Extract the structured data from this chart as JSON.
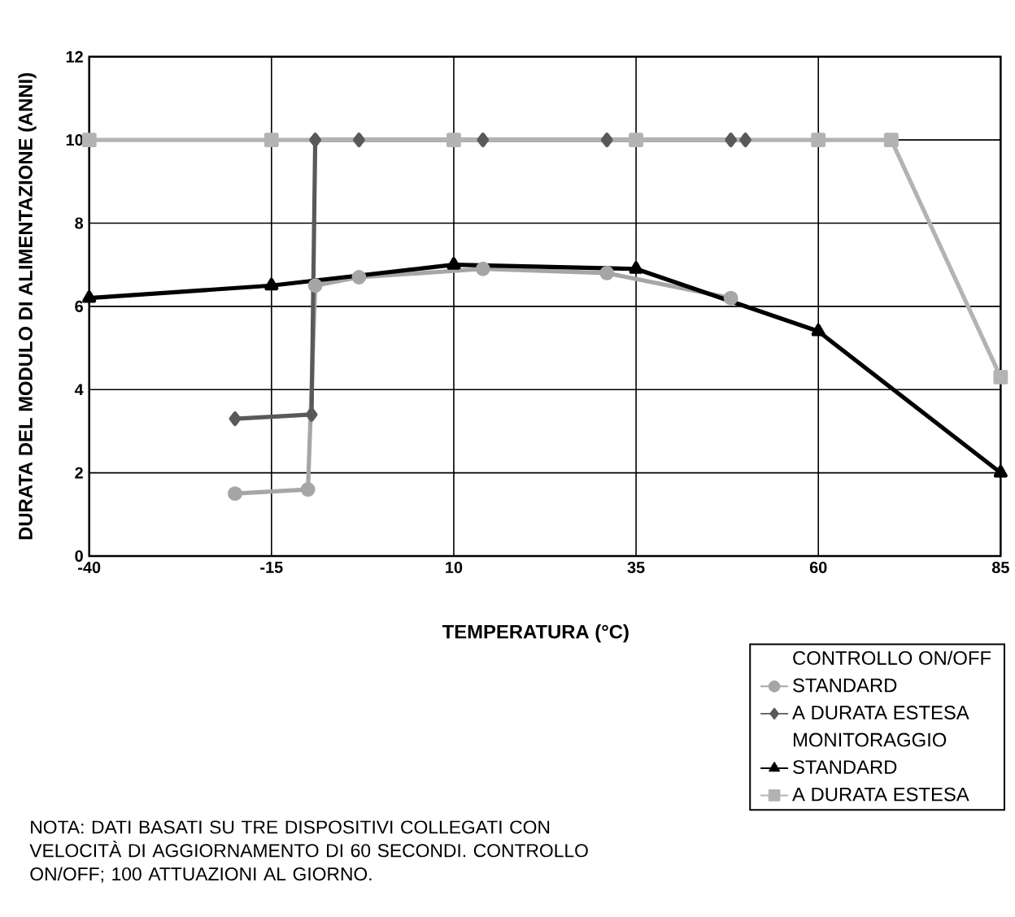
{
  "chart_data": {
    "type": "line",
    "xlabel": "TEMPERATURA (°C)",
    "ylabel": "DURATA DEL MODULO DI ALIMENTAZIONE (ANNI)",
    "xlim": [
      -40,
      85
    ],
    "xticks": [
      -40,
      -15,
      10,
      35,
      60,
      85
    ],
    "ylim": [
      0,
      12
    ],
    "yticks": [
      0,
      2,
      4,
      6,
      8,
      10,
      12
    ],
    "grid": true,
    "legend": "bottom right",
    "line_style": "solid",
    "annotations": [
      "NOTA: DATI BASATI SU TRE DISPOSITIVI COLLEGATI CON VELOCITÀ DI AGGIORNAMENTO DI 60 SECONDI. CONTROLLO ON/OFF; 100 ATTUAZIONI AL GIORNO.",
      "CONTROLLO ON/OFF",
      "MONITORAGGIO"
    ],
    "series": [
      {
        "name": "STANDARD",
        "color": "#a6a6a6",
        "marker": "circle",
        "x": [
          -20,
          -10,
          -9,
          -3,
          14,
          31,
          48
        ],
        "values": [
          1.5,
          1.6,
          6.5,
          6.7,
          6.9,
          6.8,
          6.2
        ]
      },
      {
        "name": "A DURATA ESTESA",
        "color": "#595959",
        "marker": "diamond",
        "x": [
          -20,
          -9.5,
          -9,
          -3,
          14,
          31,
          48,
          50
        ],
        "values": [
          3.3,
          3.4,
          10,
          10,
          10,
          10,
          10,
          10
        ]
      },
      {
        "name": "STANDARD",
        "color": "#000000",
        "marker": "triangle",
        "x": [
          -40,
          -15,
          10,
          35,
          60,
          85
        ],
        "values": [
          6.2,
          6.5,
          7.0,
          6.9,
          5.4,
          2.0
        ]
      },
      {
        "name": "A DURATA ESTESA",
        "color": "#b3b3b3",
        "marker": "square",
        "x": [
          -40,
          -15,
          10,
          35,
          60,
          70,
          85
        ],
        "values": [
          10,
          10,
          10,
          10,
          10,
          10,
          4.3
        ]
      }
    ]
  }
}
